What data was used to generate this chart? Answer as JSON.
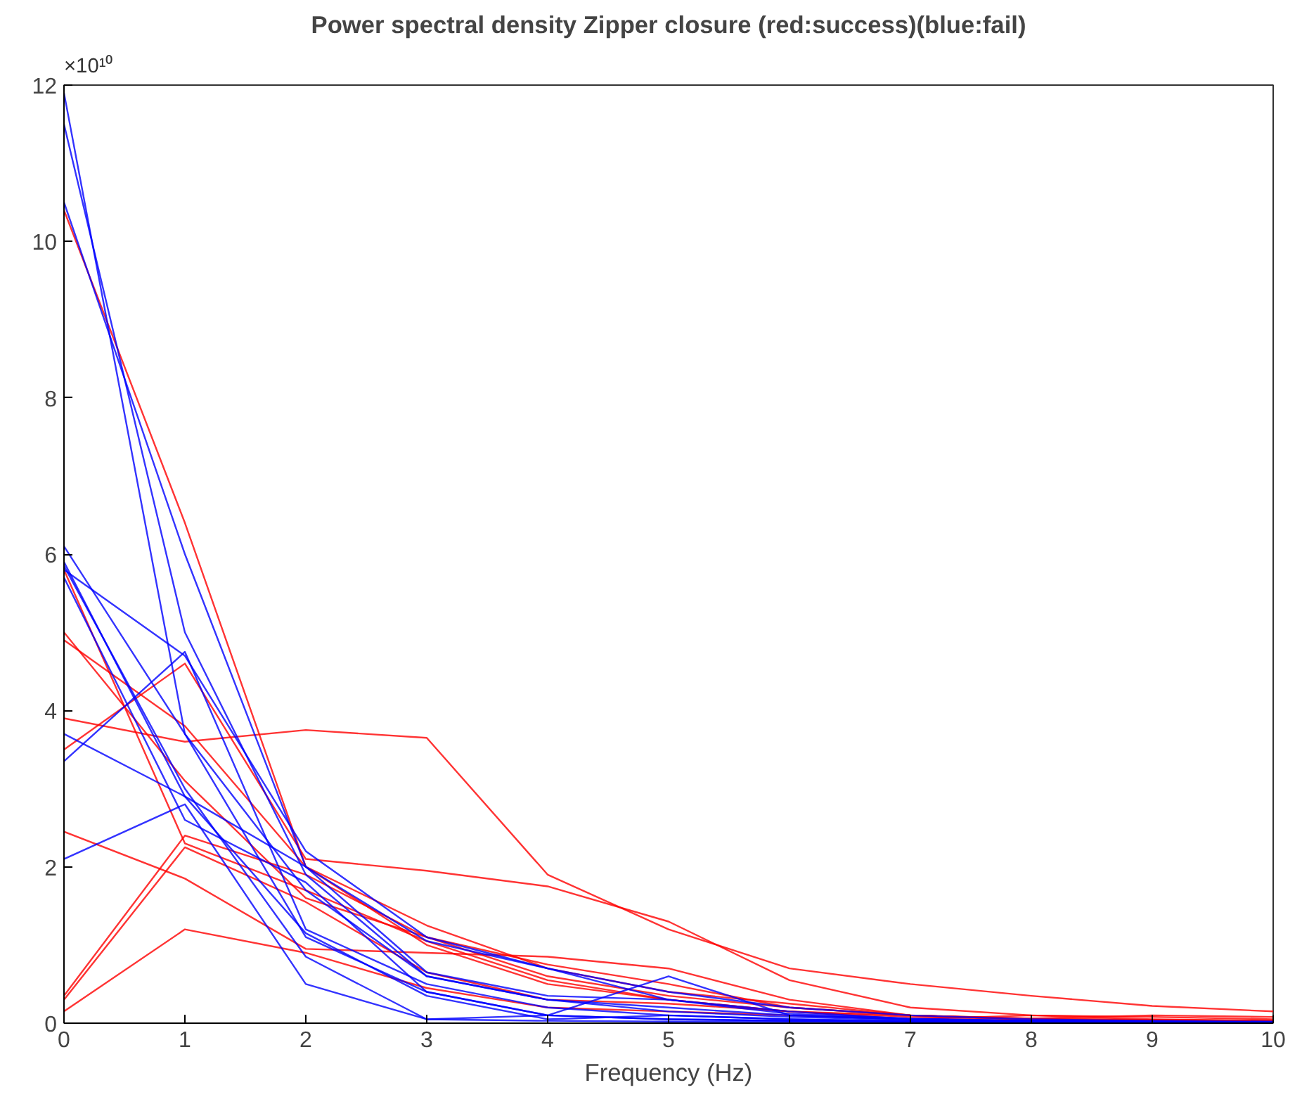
{
  "chart_data": {
    "type": "line",
    "title": "Power spectral density Zipper closure (red:success)(blue:fail)",
    "xlabel": "Frequency (Hz)",
    "annotations": [
      "×10¹⁰"
    ],
    "x": [
      0,
      1,
      2,
      3,
      4,
      5,
      6,
      7,
      8,
      9,
      10
    ],
    "xlim": [
      0,
      10
    ],
    "xticks": [
      0,
      1,
      2,
      3,
      4,
      5,
      6,
      7,
      8,
      9,
      10
    ],
    "ylim": [
      0,
      12
    ],
    "yticks": [
      0,
      2,
      4,
      6,
      8,
      10,
      12
    ],
    "grid": false,
    "line_style": "solid",
    "marker": "none",
    "series": [
      {
        "color": "#ff0000",
        "values": [
          10.4,
          6.4,
          2.0,
          1.0,
          0.5,
          0.3,
          0.15,
          0.1,
          0.05,
          0.03,
          0.02
        ]
      },
      {
        "color": "#ff0000",
        "values": [
          3.9,
          3.6,
          3.75,
          3.65,
          1.9,
          1.2,
          0.7,
          0.5,
          0.35,
          0.22,
          0.15
        ]
      },
      {
        "color": "#ff0000",
        "values": [
          3.5,
          4.6,
          2.1,
          1.95,
          1.75,
          1.3,
          0.55,
          0.2,
          0.1,
          0.08,
          0.05
        ]
      },
      {
        "color": "#ff0000",
        "values": [
          5.0,
          3.1,
          1.6,
          1.1,
          0.6,
          0.35,
          0.2,
          0.1,
          0.05,
          0.03,
          0.02
        ]
      },
      {
        "color": "#ff0000",
        "values": [
          4.9,
          3.8,
          2.0,
          1.25,
          0.7,
          0.4,
          0.25,
          0.1,
          0.06,
          0.04,
          0.03
        ]
      },
      {
        "color": "#ff0000",
        "values": [
          2.45,
          1.85,
          0.95,
          0.9,
          0.85,
          0.7,
          0.3,
          0.1,
          0.05,
          0.04,
          0.03
        ]
      },
      {
        "color": "#ff0000",
        "values": [
          0.35,
          2.4,
          1.9,
          1.1,
          0.75,
          0.5,
          0.2,
          0.1,
          0.06,
          0.1,
          0.08
        ]
      },
      {
        "color": "#ff0000",
        "values": [
          0.3,
          2.25,
          1.55,
          0.65,
          0.3,
          0.25,
          0.15,
          0.05,
          0.1,
          0.05,
          0.03
        ]
      },
      {
        "color": "#ff0000",
        "values": [
          0.15,
          1.2,
          0.9,
          0.45,
          0.2,
          0.15,
          0.1,
          0.05,
          0.03,
          0.02,
          0.01
        ]
      },
      {
        "color": "#ff0000",
        "values": [
          5.8,
          2.3,
          1.7,
          1.05,
          0.55,
          0.3,
          0.15,
          0.08,
          0.05,
          0.03,
          0.02
        ]
      },
      {
        "color": "#0000ff",
        "values": [
          11.9,
          3.7,
          1.7,
          0.6,
          0.3,
          0.2,
          0.1,
          0.05,
          0.03,
          0.02,
          0.01
        ]
      },
      {
        "color": "#0000ff",
        "values": [
          11.5,
          5.0,
          1.9,
          0.6,
          0.3,
          0.15,
          0.08,
          0.04,
          0.02,
          0.01,
          0.01
        ]
      },
      {
        "color": "#0000ff",
        "values": [
          10.5,
          6.0,
          2.0,
          0.65,
          0.35,
          0.3,
          0.12,
          0.06,
          0.03,
          0.02,
          0.01
        ]
      },
      {
        "color": "#0000ff",
        "values": [
          6.1,
          3.7,
          1.1,
          0.4,
          0.1,
          0.05,
          0.03,
          0.02,
          0.01,
          0.01,
          0.01
        ]
      },
      {
        "color": "#0000ff",
        "values": [
          5.8,
          4.7,
          2.2,
          1.1,
          0.7,
          0.4,
          0.2,
          0.1,
          0.05,
          0.03,
          0.02
        ]
      },
      {
        "color": "#0000ff",
        "values": [
          5.9,
          2.9,
          1.15,
          0.35,
          0.05,
          0.1,
          0.05,
          0.02,
          0.01,
          0.01,
          0.01
        ]
      },
      {
        "color": "#0000ff",
        "values": [
          5.7,
          2.6,
          1.8,
          0.4,
          0.1,
          0.05,
          0.03,
          0.02,
          0.01,
          0.01,
          0.01
        ]
      },
      {
        "color": "#0000ff",
        "values": [
          3.35,
          4.75,
          1.2,
          0.5,
          0.2,
          0.1,
          0.05,
          0.03,
          0.02,
          0.01,
          0.01
        ]
      },
      {
        "color": "#0000ff",
        "values": [
          3.7,
          2.9,
          2.0,
          1.05,
          0.7,
          0.3,
          0.15,
          0.05,
          0.03,
          0.02,
          0.01
        ]
      },
      {
        "color": "#0000ff",
        "values": [
          2.1,
          2.8,
          0.5,
          0.05,
          0.1,
          0.6,
          0.1,
          0.05,
          0.03,
          0.02,
          0.01
        ]
      },
      {
        "color": "#0000ff",
        "values": [
          5.85,
          3.0,
          0.85,
          0.05,
          0.03,
          0.02,
          0.02,
          0.01,
          0.01,
          0.01,
          0.01
        ]
      }
    ]
  }
}
